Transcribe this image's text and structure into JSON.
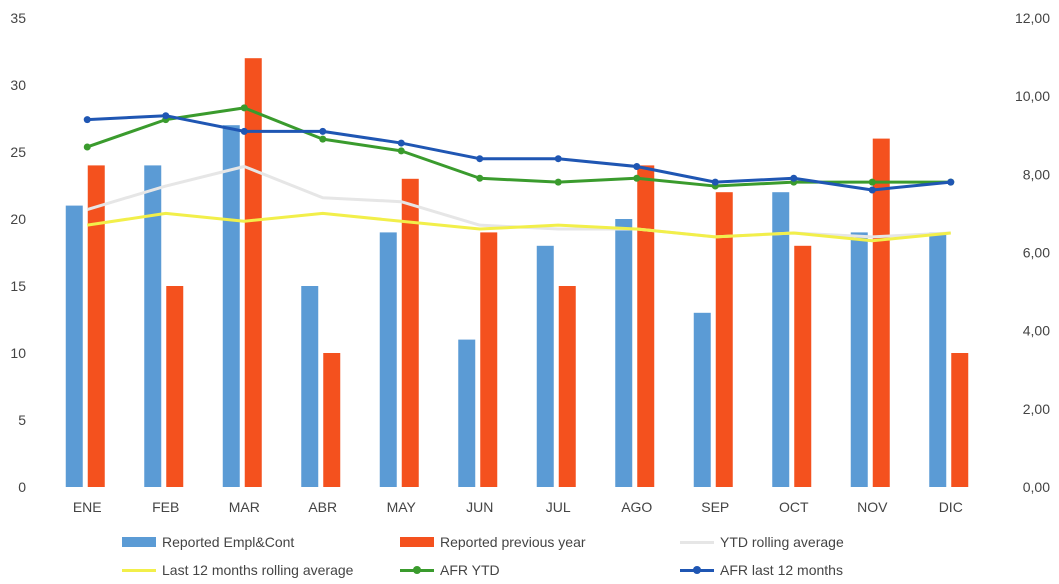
{
  "chart_data": {
    "type": "bar",
    "categories": [
      "ENE",
      "FEB",
      "MAR",
      "ABR",
      "MAY",
      "JUN",
      "JUL",
      "AGO",
      "SEP",
      "OCT",
      "NOV",
      "DIC"
    ],
    "ylim": [
      0,
      35
    ],
    "y_ticks": [
      "0",
      "5",
      "10",
      "15",
      "20",
      "25",
      "30",
      "35"
    ],
    "y2lim": [
      0,
      12
    ],
    "y2_ticks": [
      "0,00",
      "2,00",
      "4,00",
      "6,00",
      "8,00",
      "10,00",
      "12,00"
    ],
    "grid": false,
    "legend_position": "bottom",
    "series": [
      {
        "name": "Reported Empl&Cont",
        "type": "bar",
        "axis": "left",
        "color": "#5b9bd5",
        "values": [
          21,
          24,
          27,
          15,
          19,
          11,
          18,
          20,
          13,
          22,
          19,
          19
        ]
      },
      {
        "name": "Reported previous year",
        "type": "bar",
        "axis": "left",
        "color": "#f4511e",
        "values": [
          24,
          15,
          32,
          10,
          23,
          19,
          15,
          24,
          22,
          18,
          26,
          10
        ]
      },
      {
        "name": "YTD rolling average",
        "type": "line",
        "axis": "right",
        "color": "#e6e6e6",
        "marker": false,
        "values": [
          7.1,
          7.7,
          8.2,
          7.4,
          7.3,
          6.7,
          6.6,
          6.6,
          6.4,
          6.5,
          6.4,
          6.5
        ]
      },
      {
        "name": "Last 12 months rolling average",
        "type": "line",
        "axis": "right",
        "color": "#f2ef4a",
        "marker": false,
        "values": [
          6.7,
          7.0,
          6.8,
          7.0,
          6.8,
          6.6,
          6.7,
          6.6,
          6.4,
          6.5,
          6.3,
          6.5
        ]
      },
      {
        "name": "AFR YTD",
        "type": "line",
        "axis": "right",
        "color": "#3a9b2d",
        "marker": true,
        "values": [
          8.7,
          9.4,
          9.7,
          8.9,
          8.6,
          7.9,
          7.8,
          7.9,
          7.7,
          7.8,
          7.8,
          7.8
        ]
      },
      {
        "name": "AFR last 12 months",
        "type": "line",
        "axis": "right",
        "color": "#1f56b3",
        "marker": true,
        "values": [
          9.4,
          9.5,
          9.1,
          9.1,
          8.8,
          8.4,
          8.4,
          8.2,
          7.8,
          7.9,
          7.6,
          7.8
        ]
      }
    ]
  }
}
